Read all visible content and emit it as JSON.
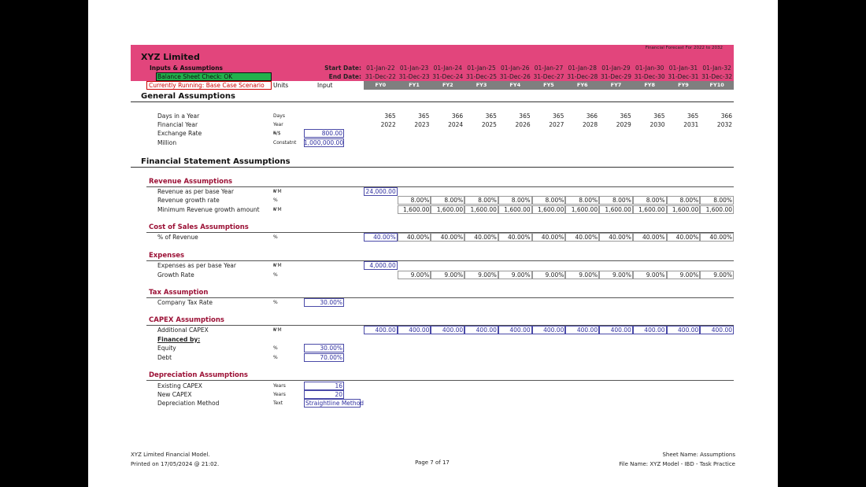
{
  "header": {
    "banner": "Financial Forecast For 2022 to 2032",
    "company": "XYZ Limited",
    "section": "Inputs & Assumptions",
    "check": "Balance Sheet Check: OK",
    "running": "Currently Running: Base Case Scenario",
    "start_label": "Start Date:",
    "end_label": "End Date:",
    "units": "Units",
    "input": "Input",
    "start_dates": [
      "01-Jan-22",
      "01-Jan-23",
      "01-Jan-24",
      "01-Jan-25",
      "01-Jan-26",
      "01-Jan-27",
      "01-Jan-28",
      "01-Jan-29",
      "01-Jan-30",
      "01-Jan-31",
      "01-Jan-32"
    ],
    "end_dates": [
      "31-Dec-22",
      "31-Dec-23",
      "31-Dec-24",
      "31-Dec-25",
      "31-Dec-26",
      "31-Dec-27",
      "31-Dec-28",
      "31-Dec-29",
      "31-Dec-30",
      "31-Dec-31",
      "31-Dec-32"
    ],
    "periods": [
      "FY0",
      "FY1",
      "FY2",
      "FY3",
      "FY4",
      "FY5",
      "FY6",
      "FY7",
      "FY8",
      "FY9",
      "FY10"
    ]
  },
  "general": {
    "title": "General Assumptions",
    "rows": [
      {
        "label": "Days in a Year",
        "unit": "Days",
        "values": [
          "365",
          "365",
          "366",
          "365",
          "365",
          "365",
          "366",
          "365",
          "365",
          "365",
          "366"
        ]
      },
      {
        "label": "Financial Year",
        "unit": "Year",
        "values": [
          "2022",
          "2023",
          "2024",
          "2025",
          "2026",
          "2027",
          "2028",
          "2029",
          "2030",
          "2031",
          "2032"
        ]
      },
      {
        "label": "Exchange Rate",
        "unit": "₦/$",
        "input": "800.00"
      },
      {
        "label": "Million",
        "unit": "Constatnt",
        "input": "1,000,000.00"
      }
    ]
  },
  "financial": {
    "title": "Financial Statement Assumptions",
    "groups": [
      {
        "title": "Revenue Assumptions",
        "rows": [
          {
            "label": "Revenue as per base Year",
            "unit": "₦'M",
            "values": [
              "24,000.00",
              null,
              null,
              null,
              null,
              null,
              null,
              null,
              null,
              null,
              null
            ]
          },
          {
            "label": "Revenue growth rate",
            "unit": "%",
            "values": [
              null,
              "8.00%",
              "8.00%",
              "8.00%",
              "8.00%",
              "8.00%",
              "8.00%",
              "8.00%",
              "8.00%",
              "8.00%",
              "8.00%"
            ]
          },
          {
            "label": "Minimum Revenue growth amount",
            "unit": "₦'M",
            "values": [
              null,
              "1,600.00",
              "1,600.00",
              "1,600.00",
              "1,600.00",
              "1,600.00",
              "1,600.00",
              "1,600.00",
              "1,600.00",
              "1,600.00",
              "1,600.00"
            ]
          }
        ]
      },
      {
        "title": "Cost of Sales Assumptions",
        "rows": [
          {
            "label": "% of Revenue",
            "unit": "%",
            "values": [
              "40.00%",
              "40.00%",
              "40.00%",
              "40.00%",
              "40.00%",
              "40.00%",
              "40.00%",
              "40.00%",
              "40.00%",
              "40.00%",
              "40.00%"
            ]
          }
        ]
      },
      {
        "title": "Expenses",
        "rows": [
          {
            "label": "Expenses as per base Year",
            "unit": "₦'M",
            "values": [
              "4,000.00",
              null,
              null,
              null,
              null,
              null,
              null,
              null,
              null,
              null,
              null
            ]
          },
          {
            "label": "Growth Rate",
            "unit": "%",
            "values": [
              null,
              "9.00%",
              "9.00%",
              "9.00%",
              "9.00%",
              "9.00%",
              "9.00%",
              "9.00%",
              "9.00%",
              "9.00%",
              "9.00%"
            ]
          }
        ]
      },
      {
        "title": "Tax Assumption",
        "rows": [
          {
            "label": "Company Tax Rate",
            "unit": "%",
            "input": "30.00%"
          }
        ]
      },
      {
        "title": "CAPEX Assumptions",
        "rows": [
          {
            "label": "Additional CAPEX",
            "unit": "₦'M",
            "values": [
              "400.00",
              "400.00",
              "400.00",
              "400.00",
              "400.00",
              "400.00",
              "400.00",
              "400.00",
              "400.00",
              "400.00",
              "400.00"
            ]
          },
          {
            "label": "Financed by:"
          },
          {
            "label": "Equity",
            "unit": "%",
            "input": "30.00%"
          },
          {
            "label": "Debt",
            "unit": "%",
            "input": "70.00%"
          }
        ]
      },
      {
        "title": "Depreciation Assumptions",
        "rows": [
          {
            "label": "Existing CAPEX",
            "unit": "Years",
            "input": "16"
          },
          {
            "label": "New CAPEX",
            "unit": "Years",
            "input": "20"
          },
          {
            "label": "Depreciation Method",
            "unit": "Text",
            "input": "Straightline Method"
          }
        ]
      }
    ]
  },
  "footer": {
    "model": "XYZ Limited Financial Model.",
    "printed": "Printed on 17/05/2024 @ 21:02.",
    "page": "Page 7 of 17",
    "sheet": "Sheet Name: Assumptions",
    "file": "File Name: XYZ Model - IBD - Task Practice"
  }
}
